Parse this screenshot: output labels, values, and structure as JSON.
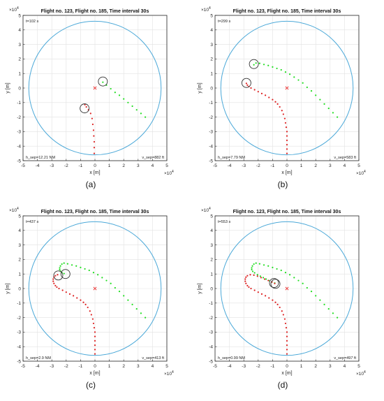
{
  "figure": {
    "panels": [
      {
        "caption": "(a)",
        "title": "Flight no. 123, Flight no. 185, Time interval 30s",
        "time_label": "t=102 s",
        "hsep_label": "h_sep=12.21 NM",
        "vsep_label": "v_sep=882 ft"
      },
      {
        "caption": "(b)",
        "title": "Flight no. 123, Flight no. 185, Time interval 30s",
        "time_label": "t=299 s",
        "hsep_label": "h_sep=7.79 NM",
        "vsep_label": "v_sep=583 ft"
      },
      {
        "caption": "(c)",
        "title": "Flight no. 123, Flight no. 185, Time interval 30s",
        "time_label": "t=437 s",
        "hsep_label": "h_sep=2.9 NM",
        "vsep_label": "v_sep=413 ft"
      },
      {
        "caption": "(d)",
        "title": "Flight no. 123, Flight no. 185, Time interval 30s",
        "time_label": "t=553 s",
        "hsep_label": "h_sep=0.99 NM",
        "vsep_label": "v_sep=497 ft"
      }
    ]
  },
  "colors": {
    "green_track": "#22dd22",
    "red_track": "#dd2222",
    "circle": "#4aa8d8",
    "grid": "#e2e2e2",
    "center_marker": "#ee3333"
  },
  "chart_data": [
    {
      "type": "scatter",
      "title": "Flight no. 123, Flight no. 185, Time interval 30s",
      "xlabel": "x [m]",
      "ylabel": "y [m]",
      "axis_multiplier": "×10^4",
      "xlim": [
        -5,
        5
      ],
      "ylim": [
        -5,
        5
      ],
      "xticks": [
        -5,
        -4,
        -3,
        -2,
        -1,
        0,
        1,
        2,
        3,
        4,
        5
      ],
      "yticks": [
        -5,
        -4,
        -3,
        -2,
        -1,
        0,
        1,
        2,
        3,
        4,
        5
      ],
      "grid": true,
      "boundary_circle_radius": 4.6,
      "center": [
        0,
        0
      ],
      "series": [
        {
          "color": "green",
          "points": [
            [
              3.5,
              -2.0
            ],
            [
              3.2,
              -1.75
            ],
            [
              2.9,
              -1.5
            ],
            [
              2.6,
              -1.25
            ],
            [
              2.3,
              -1.0
            ],
            [
              2.0,
              -0.75
            ],
            [
              1.7,
              -0.5
            ],
            [
              1.4,
              -0.3
            ],
            [
              1.1,
              -0.05
            ],
            [
              0.8,
              0.2
            ],
            [
              0.55,
              0.4
            ]
          ]
        },
        {
          "color": "red",
          "points": [
            [
              -0.05,
              -4.5
            ],
            [
              -0.05,
              -4.1
            ],
            [
              -0.05,
              -3.7
            ],
            [
              -0.08,
              -3.3
            ],
            [
              -0.1,
              -2.9
            ],
            [
              -0.15,
              -2.5
            ],
            [
              -0.2,
              -2.1
            ],
            [
              -0.3,
              -1.75
            ],
            [
              -0.45,
              -1.5
            ],
            [
              -0.6,
              -1.3
            ],
            [
              -0.7,
              -1.15
            ]
          ]
        }
      ],
      "highlight_rings": [
        [
          0.55,
          0.45
        ],
        [
          -0.72,
          -1.4
        ]
      ]
    },
    {
      "type": "scatter",
      "title": "Flight no. 123, Flight no. 185, Time interval 30s",
      "xlabel": "x [m]",
      "ylabel": "y [m]",
      "axis_multiplier": "×10^4",
      "xlim": [
        -5,
        5
      ],
      "ylim": [
        -5,
        5
      ],
      "xticks": [
        -5,
        -4,
        -3,
        -2,
        -1,
        0,
        1,
        2,
        3,
        4,
        5
      ],
      "yticks": [
        -5,
        -4,
        -3,
        -2,
        -1,
        0,
        1,
        2,
        3,
        4,
        5
      ],
      "grid": true,
      "boundary_circle_radius": 4.6,
      "center": [
        0,
        0
      ],
      "series": [
        {
          "color": "green",
          "points": [
            [
              3.5,
              -2.0
            ],
            [
              3.2,
              -1.7
            ],
            [
              2.9,
              -1.4
            ],
            [
              2.6,
              -1.1
            ],
            [
              2.3,
              -0.8
            ],
            [
              2.0,
              -0.5
            ],
            [
              1.7,
              -0.2
            ],
            [
              1.4,
              0.05
            ],
            [
              1.1,
              0.35
            ],
            [
              0.8,
              0.55
            ],
            [
              0.5,
              0.75
            ],
            [
              0.2,
              0.95
            ],
            [
              -0.1,
              1.1
            ],
            [
              -0.4,
              1.25
            ],
            [
              -0.7,
              1.35
            ],
            [
              -1.0,
              1.45
            ],
            [
              -1.3,
              1.55
            ],
            [
              -1.6,
              1.62
            ],
            [
              -1.9,
              1.7
            ],
            [
              -2.15,
              1.72
            ],
            [
              -2.3,
              1.6
            ]
          ]
        },
        {
          "color": "red",
          "points": [
            [
              0.0,
              -4.5
            ],
            [
              0.0,
              -4.2
            ],
            [
              0.0,
              -3.9
            ],
            [
              0.0,
              -3.6
            ],
            [
              0.0,
              -3.3
            ],
            [
              0.0,
              -3.0
            ],
            [
              -0.05,
              -2.7
            ],
            [
              -0.1,
              -2.4
            ],
            [
              -0.15,
              -2.1
            ],
            [
              -0.25,
              -1.8
            ],
            [
              -0.35,
              -1.55
            ],
            [
              -0.5,
              -1.3
            ],
            [
              -0.65,
              -1.1
            ],
            [
              -0.8,
              -0.95
            ],
            [
              -1.0,
              -0.8
            ],
            [
              -1.25,
              -0.65
            ],
            [
              -1.5,
              -0.5
            ],
            [
              -1.75,
              -0.38
            ],
            [
              -2.0,
              -0.25
            ],
            [
              -2.25,
              -0.12
            ],
            [
              -2.5,
              0.0
            ],
            [
              -2.65,
              0.1
            ],
            [
              -2.75,
              0.2
            ],
            [
              -2.82,
              0.32
            ]
          ]
        }
      ],
      "highlight_rings": [
        [
          -2.3,
          1.65
        ],
        [
          -2.82,
          0.35
        ]
      ]
    },
    {
      "type": "scatter",
      "title": "Flight no. 123, Flight no. 185, Time interval 30s",
      "xlabel": "x [m]",
      "ylabel": "y [m]",
      "axis_multiplier": "×10^4",
      "xlim": [
        -5,
        5
      ],
      "ylim": [
        -5,
        5
      ],
      "xticks": [
        -5,
        -4,
        -3,
        -2,
        -1,
        0,
        1,
        2,
        3,
        4,
        5
      ],
      "yticks": [
        -5,
        -4,
        -3,
        -2,
        -1,
        0,
        1,
        2,
        3,
        4,
        5
      ],
      "grid": true,
      "boundary_circle_radius": 4.6,
      "center": [
        0,
        0
      ],
      "series": [
        {
          "color": "green",
          "points": [
            [
              3.5,
              -2.0
            ],
            [
              3.2,
              -1.7
            ],
            [
              2.9,
              -1.4
            ],
            [
              2.6,
              -1.1
            ],
            [
              2.3,
              -0.8
            ],
            [
              2.0,
              -0.5
            ],
            [
              1.7,
              -0.2
            ],
            [
              1.4,
              0.05
            ],
            [
              1.1,
              0.35
            ],
            [
              0.8,
              0.55
            ],
            [
              0.5,
              0.75
            ],
            [
              0.2,
              0.95
            ],
            [
              -0.1,
              1.1
            ],
            [
              -0.4,
              1.25
            ],
            [
              -0.7,
              1.35
            ],
            [
              -1.0,
              1.45
            ],
            [
              -1.3,
              1.55
            ],
            [
              -1.6,
              1.62
            ],
            [
              -1.9,
              1.7
            ],
            [
              -2.15,
              1.75
            ],
            [
              -2.3,
              1.68
            ],
            [
              -2.4,
              1.55
            ],
            [
              -2.45,
              1.42
            ],
            [
              -2.45,
              1.3
            ],
            [
              -2.4,
              1.2
            ],
            [
              -2.3,
              1.1
            ],
            [
              -2.15,
              1.03
            ]
          ]
        },
        {
          "color": "red",
          "points": [
            [
              0.0,
              -4.5
            ],
            [
              0.0,
              -4.2
            ],
            [
              0.0,
              -3.9
            ],
            [
              0.0,
              -3.6
            ],
            [
              0.0,
              -3.3
            ],
            [
              0.0,
              -3.0
            ],
            [
              -0.05,
              -2.7
            ],
            [
              -0.1,
              -2.4
            ],
            [
              -0.15,
              -2.1
            ],
            [
              -0.25,
              -1.8
            ],
            [
              -0.35,
              -1.55
            ],
            [
              -0.5,
              -1.3
            ],
            [
              -0.65,
              -1.1
            ],
            [
              -0.8,
              -0.95
            ],
            [
              -1.0,
              -0.8
            ],
            [
              -1.25,
              -0.65
            ],
            [
              -1.5,
              -0.5
            ],
            [
              -1.75,
              -0.38
            ],
            [
              -2.0,
              -0.25
            ],
            [
              -2.25,
              -0.12
            ],
            [
              -2.5,
              0.0
            ],
            [
              -2.65,
              0.1
            ],
            [
              -2.75,
              0.2
            ],
            [
              -2.85,
              0.35
            ],
            [
              -2.9,
              0.5
            ],
            [
              -2.9,
              0.65
            ],
            [
              -2.85,
              0.78
            ],
            [
              -2.75,
              0.88
            ],
            [
              -2.6,
              0.95
            ]
          ]
        }
      ],
      "highlight_rings": [
        [
          -2.05,
          1.0
        ],
        [
          -2.55,
          0.9
        ]
      ]
    },
    {
      "type": "scatter",
      "title": "Flight no. 123, Flight no. 185, Time interval 30s",
      "xlabel": "x [m]",
      "ylabel": "y [m]",
      "axis_multiplier": "×10^4",
      "xlim": [
        -5,
        5
      ],
      "ylim": [
        -5,
        5
      ],
      "xticks": [
        -5,
        -4,
        -3,
        -2,
        -1,
        0,
        1,
        2,
        3,
        4,
        5
      ],
      "yticks": [
        -5,
        -4,
        -3,
        -2,
        -1,
        0,
        1,
        2,
        3,
        4,
        5
      ],
      "grid": true,
      "boundary_circle_radius": 4.6,
      "center": [
        0,
        0
      ],
      "series": [
        {
          "color": "green",
          "points": [
            [
              3.5,
              -2.0
            ],
            [
              3.2,
              -1.7
            ],
            [
              2.9,
              -1.4
            ],
            [
              2.6,
              -1.1
            ],
            [
              2.3,
              -0.8
            ],
            [
              2.0,
              -0.5
            ],
            [
              1.7,
              -0.2
            ],
            [
              1.4,
              0.05
            ],
            [
              1.1,
              0.35
            ],
            [
              0.8,
              0.55
            ],
            [
              0.5,
              0.75
            ],
            [
              0.2,
              0.95
            ],
            [
              -0.1,
              1.1
            ],
            [
              -0.4,
              1.25
            ],
            [
              -0.7,
              1.35
            ],
            [
              -1.0,
              1.45
            ],
            [
              -1.3,
              1.55
            ],
            [
              -1.6,
              1.62
            ],
            [
              -1.9,
              1.7
            ],
            [
              -2.15,
              1.75
            ],
            [
              -2.3,
              1.68
            ],
            [
              -2.4,
              1.55
            ],
            [
              -2.45,
              1.42
            ],
            [
              -2.45,
              1.3
            ],
            [
              -2.38,
              1.18
            ],
            [
              -2.25,
              1.08
            ],
            [
              -2.05,
              0.95
            ],
            [
              -1.85,
              0.85
            ],
            [
              -1.65,
              0.75
            ],
            [
              -1.45,
              0.65
            ],
            [
              -1.25,
              0.55
            ],
            [
              -1.05,
              0.45
            ],
            [
              -0.85,
              0.38
            ]
          ]
        },
        {
          "color": "red",
          "points": [
            [
              0.0,
              -4.5
            ],
            [
              0.0,
              -4.2
            ],
            [
              0.0,
              -3.9
            ],
            [
              0.0,
              -3.6
            ],
            [
              0.0,
              -3.3
            ],
            [
              0.0,
              -3.0
            ],
            [
              -0.05,
              -2.7
            ],
            [
              -0.1,
              -2.4
            ],
            [
              -0.15,
              -2.1
            ],
            [
              -0.25,
              -1.8
            ],
            [
              -0.35,
              -1.55
            ],
            [
              -0.5,
              -1.3
            ],
            [
              -0.65,
              -1.1
            ],
            [
              -0.8,
              -0.95
            ],
            [
              -1.0,
              -0.8
            ],
            [
              -1.25,
              -0.65
            ],
            [
              -1.5,
              -0.5
            ],
            [
              -1.75,
              -0.38
            ],
            [
              -2.0,
              -0.25
            ],
            [
              -2.25,
              -0.12
            ],
            [
              -2.5,
              0.0
            ],
            [
              -2.65,
              0.1
            ],
            [
              -2.75,
              0.2
            ],
            [
              -2.85,
              0.35
            ],
            [
              -2.9,
              0.5
            ],
            [
              -2.9,
              0.65
            ],
            [
              -2.85,
              0.78
            ],
            [
              -2.75,
              0.88
            ],
            [
              -2.55,
              0.95
            ],
            [
              -2.3,
              0.92
            ],
            [
              -2.05,
              0.85
            ],
            [
              -1.8,
              0.75
            ],
            [
              -1.55,
              0.65
            ],
            [
              -1.3,
              0.55
            ],
            [
              -1.05,
              0.45
            ],
            [
              -0.85,
              0.35
            ]
          ]
        }
      ],
      "highlight_rings": [
        [
          -0.8,
          0.32
        ],
        [
          -0.9,
          0.38
        ]
      ]
    }
  ]
}
